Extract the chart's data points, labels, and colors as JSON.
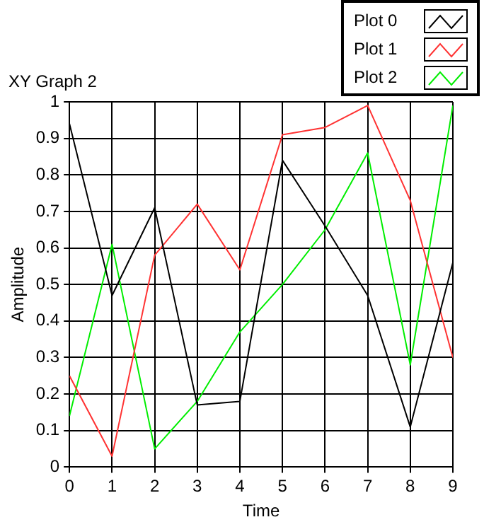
{
  "chart_data": {
    "type": "line",
    "title": "XY Graph 2",
    "xlabel": "Time",
    "ylabel": "Amplitude",
    "x": [
      0,
      1,
      2,
      3,
      4,
      5,
      6,
      7,
      8,
      9
    ],
    "series": [
      {
        "name": "Plot 0",
        "color": "#000000",
        "values": [
          0.94,
          0.47,
          0.71,
          0.17,
          0.18,
          0.84,
          0.66,
          0.47,
          0.11,
          0.56
        ]
      },
      {
        "name": "Plot 1",
        "color": "#ff3333",
        "values": [
          0.25,
          0.03,
          0.58,
          0.72,
          0.54,
          0.91,
          0.93,
          0.99,
          0.73,
          0.3
        ]
      },
      {
        "name": "Plot 2",
        "color": "#00ee00",
        "values": [
          0.14,
          0.61,
          0.05,
          0.18,
          0.37,
          0.5,
          0.65,
          0.86,
          0.28,
          0.99
        ]
      }
    ],
    "xlim": [
      0,
      9
    ],
    "xticks": [
      0,
      1,
      2,
      3,
      4,
      5,
      6,
      7,
      8,
      9
    ],
    "ylim": [
      0,
      1
    ],
    "yticks": [
      0,
      0.1,
      0.2,
      0.3,
      0.4,
      0.5,
      0.6,
      0.7,
      0.8,
      0.9,
      1
    ],
    "grid": true,
    "legend": "top right",
    "marker": "none",
    "line_style": "solid"
  }
}
